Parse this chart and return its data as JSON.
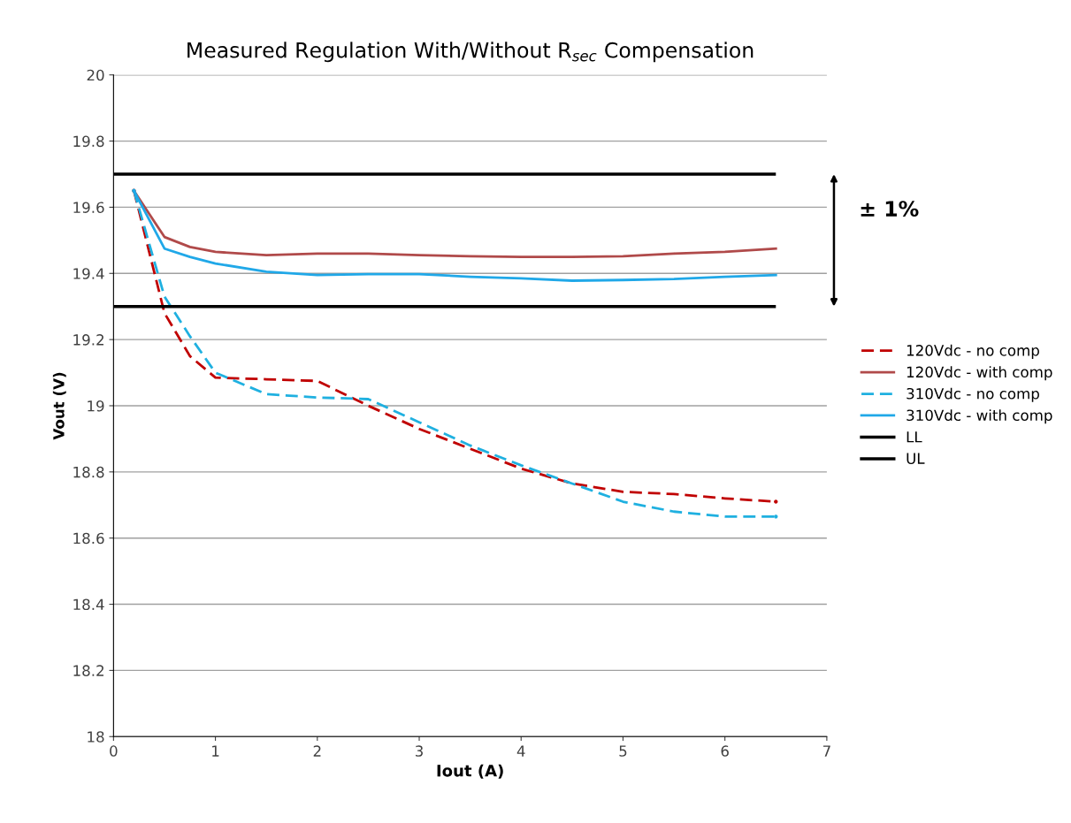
{
  "chart_data": {
    "type": "line",
    "title": "Measured Regulation With/Without R$_{sec}$ Compensation",
    "xlabel": "Iout (A)",
    "ylabel": "Vout (V)",
    "x": [
      0.2,
      0.5,
      0.75,
      1,
      1.5,
      2,
      2.5,
      3,
      3.5,
      4,
      4.5,
      5,
      5.5,
      6,
      6.5
    ],
    "series": [
      {
        "name": "120Vdc - no comp",
        "color": "#c00000",
        "line_style": "dashed",
        "values": [
          19.65,
          19.28,
          19.15,
          19.085,
          19.08,
          19.075,
          19.0,
          18.93,
          18.87,
          18.81,
          18.765,
          18.74,
          18.733,
          18.72,
          18.71
        ]
      },
      {
        "name": "120Vdc - with comp",
        "color": "#b04a4a",
        "line_style": "solid",
        "values": [
          19.65,
          19.51,
          19.48,
          19.465,
          19.455,
          19.46,
          19.46,
          19.455,
          19.452,
          19.45,
          19.45,
          19.452,
          19.46,
          19.465,
          19.475
        ]
      },
      {
        "name": "310Vdc - no comp",
        "color": "#1fb0e0",
        "line_style": "dashed",
        "values": [
          19.65,
          19.33,
          19.21,
          19.1,
          19.035,
          19.025,
          19.02,
          18.95,
          18.88,
          18.82,
          18.765,
          18.71,
          18.68,
          18.665,
          18.665
        ]
      },
      {
        "name": "310Vdc - with comp",
        "color": "#20a8e8",
        "line_style": "solid",
        "values": [
          19.65,
          19.475,
          19.45,
          19.43,
          19.405,
          19.395,
          19.398,
          19.398,
          19.39,
          19.385,
          19.378,
          19.38,
          19.383,
          19.39,
          19.395
        ]
      }
    ],
    "ref_lines": [
      {
        "axis": "y",
        "value": 19.3,
        "label": "LL",
        "color": "#000000",
        "line_style": "solid"
      },
      {
        "axis": "y",
        "value": 19.7,
        "label": "UL",
        "color": "#000000",
        "line_style": "solid"
      }
    ],
    "xlim": [
      0,
      7
    ],
    "xticks": [
      0,
      1,
      2,
      3,
      4,
      5,
      6,
      7
    ],
    "ylim": [
      18,
      20
    ],
    "yticks": [
      18,
      18.2,
      18.4,
      18.6,
      18.8,
      19,
      19.2,
      19.4,
      19.6,
      19.8,
      20
    ],
    "grid": "y",
    "legend": "right",
    "marker": "none",
    "annotations": [
      "± 1%"
    ]
  }
}
